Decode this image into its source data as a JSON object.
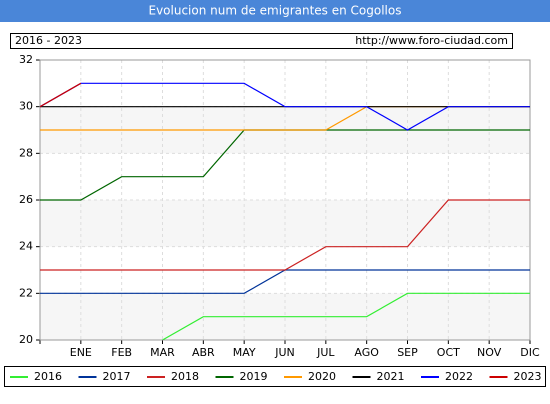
{
  "chart_data": {
    "type": "line",
    "title": "Evolucion num de emigrantes en Cogollos",
    "period": "2016 - 2023",
    "source": "http://www.foro-ciudad.com",
    "categories": [
      null,
      "ENE",
      "FEB",
      "MAR",
      "ABR",
      "MAY",
      "JUN",
      "JUL",
      "AGO",
      "SEP",
      "OCT",
      "NOV",
      "DIC"
    ],
    "ylim": [
      20,
      32
    ],
    "yticks": [
      20,
      22,
      24,
      26,
      28,
      30,
      32
    ],
    "grid": true,
    "legend": "bottom",
    "series": [
      {
        "name": "2016",
        "color": "#33ee33",
        "values": [
          null,
          null,
          null,
          20,
          21,
          21,
          21,
          21,
          21,
          22,
          22,
          22,
          22
        ]
      },
      {
        "name": "2017",
        "color": "#003399",
        "values": [
          22,
          22,
          22,
          22,
          22,
          22,
          23,
          23,
          23,
          23,
          23,
          23,
          23
        ]
      },
      {
        "name": "2018",
        "color": "#cc2222",
        "values": [
          23,
          23,
          23,
          23,
          23,
          23,
          23,
          24,
          24,
          24,
          26,
          26,
          26
        ]
      },
      {
        "name": "2019",
        "color": "#006600",
        "values": [
          26,
          26,
          27,
          27,
          27,
          29,
          29,
          29,
          29,
          29,
          29,
          29,
          29
        ]
      },
      {
        "name": "2020",
        "color": "#ff9900",
        "values": [
          29,
          29,
          29,
          29,
          29,
          29,
          29,
          29,
          30,
          30,
          30,
          30,
          30
        ]
      },
      {
        "name": "2021",
        "color": "#000000",
        "values": [
          30,
          30,
          30,
          30,
          30,
          30,
          30,
          30,
          30,
          30,
          30,
          30,
          30
        ]
      },
      {
        "name": "2022",
        "color": "#0000ff",
        "values": [
          30,
          31,
          31,
          31,
          31,
          31,
          30,
          30,
          30,
          29,
          30,
          30,
          30
        ]
      },
      {
        "name": "2023",
        "color": "#cc0000",
        "values": [
          30,
          31,
          null,
          null,
          null,
          null,
          null,
          null,
          null,
          null,
          null,
          null,
          null
        ]
      }
    ]
  }
}
